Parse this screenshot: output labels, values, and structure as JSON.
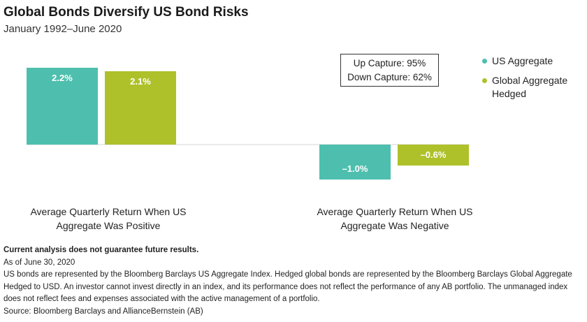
{
  "title": "Global Bonds Diversify US Bond Risks",
  "subtitle": "January 1992–June 2020",
  "chart_data": {
    "type": "bar",
    "categories": [
      "Average Quarterly Return When US Aggregate Was Positive",
      "Average Quarterly Return When US Aggregate Was Negative"
    ],
    "series": [
      {
        "name": "US Aggregate",
        "values": [
          2.2,
          -1.0
        ],
        "labels": [
          "2.2%",
          "–1.0%"
        ],
        "color": "#4ebfae"
      },
      {
        "name": "Global Aggregate Hedged",
        "values": [
          2.1,
          -0.6
        ],
        "labels": [
          "2.1%",
          "–0.6%"
        ],
        "color": "#aec12a"
      }
    ],
    "ylim": [
      -1.0,
      2.2
    ],
    "grid": false,
    "legend_position": "right",
    "annotation": [
      "Up Capture: 95%",
      "Down Capture: 62%"
    ]
  },
  "group_labels": [
    {
      "line1": "Average Quarterly Return When US",
      "line2": "Aggregate Was Positive"
    },
    {
      "line1": "Average Quarterly Return When US",
      "line2": "Aggregate Was Negative"
    }
  ],
  "legend": [
    {
      "line1": "US Aggregate",
      "line2": ""
    },
    {
      "line1": "Global Aggregate",
      "line2": "Hedged"
    }
  ],
  "notes": {
    "disclaimer": "Current analysis does not guarantee future results.",
    "as_of": "As of June 30, 2020",
    "body": "US bonds are represented by the Bloomberg Barclays US Aggregate Index. Hedged global bonds are represented by the Bloomberg Barclays Global Aggregate Hedged to USD. An investor cannot invest directly in an index, and its performance does not reflect the performance of any AB portfolio. The unmanaged index does not reflect fees and expenses associated with the active management of a portfolio.",
    "source": "Source: Bloomberg Barclays and AllianceBernstein (AB)"
  }
}
